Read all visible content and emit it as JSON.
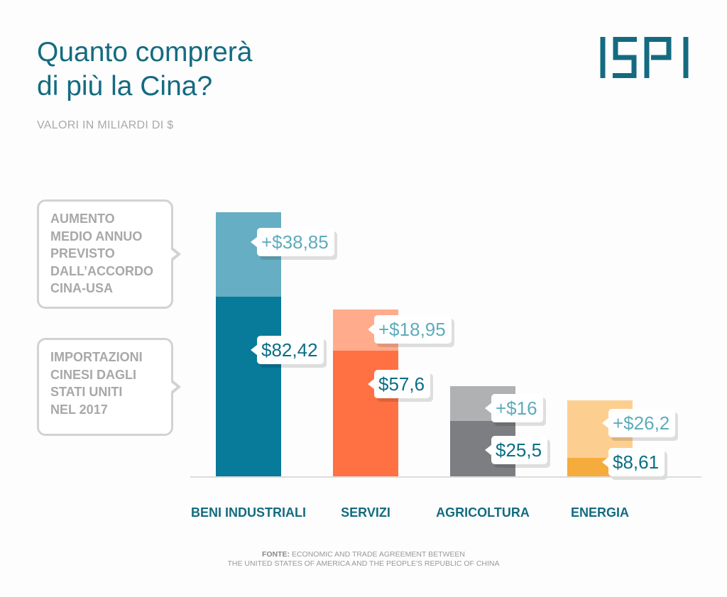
{
  "title_line1": "Quanto comprerà",
  "title_line2": "di più la Cina?",
  "subtitle": "VALORI IN MILIARDI DI $",
  "logo_text": "ISPI",
  "legend": {
    "increase": [
      "AUMENTO",
      "MEDIO ANNUO",
      "PREVISTO",
      "DALL’ACCORDO",
      "CINA-USA"
    ],
    "base": [
      "IMPORTAZIONI",
      "CINESI DAGLI",
      "STATI UNITI",
      "NEL 2017"
    ]
  },
  "chart_data": {
    "type": "bar",
    "stacked": true,
    "categories": [
      "BENI INDUSTRIALI",
      "SERVIZI",
      "AGRICOLTURA",
      "ENERGIA"
    ],
    "series": [
      {
        "name": "IMPORTAZIONI CINESI DAGLI STATI UNITI NEL 2017",
        "values": [
          82.42,
          57.6,
          25.5,
          8.61
        ],
        "labels": [
          "$82,42",
          "$57,6",
          "$25,5",
          "$8,61"
        ]
      },
      {
        "name": "AUMENTO MEDIO ANNUO PREVISTO DALL’ACCORDO CINA-USA",
        "values": [
          38.85,
          18.95,
          16,
          26.2
        ],
        "labels": [
          "+$38,85",
          "+$18,95",
          "+$16",
          "+$26,2"
        ]
      }
    ],
    "colors": {
      "base": [
        "#087a9a",
        "#ff7043",
        "#7d7e82",
        "#f5ac3c"
      ],
      "increase": [
        "#66aec3",
        "#ffab8c",
        "#b0b1b3",
        "#fccf90"
      ]
    },
    "ylim": [
      0,
      125
    ],
    "grid": false,
    "title": "Quanto comprerà di più la Cina?",
    "ylabel": "VALORI IN MILIARDI DI $"
  },
  "source_label": "FONTE:",
  "source_line1": "ECONOMIC AND TRADE AGREEMENT BETWEEN",
  "source_line2": "THE UNITED STATES OF AMERICA AND THE PEOPLE'S REPUBLIC OF CHINA",
  "colors": {
    "title": "#146b80",
    "logo": "#146b80"
  }
}
